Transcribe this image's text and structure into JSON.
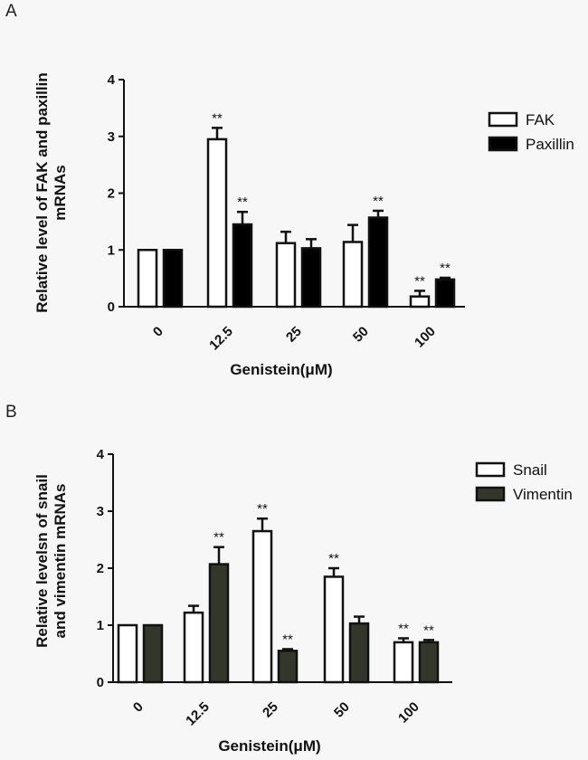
{
  "panels": {
    "a": {
      "letter": "A"
    },
    "b": {
      "letter": "B"
    }
  },
  "chart_data": [
    {
      "type": "bar",
      "title": "",
      "categories": [
        "0",
        "12.5",
        "25",
        "50",
        "100"
      ],
      "xlabel": "Genistein(μM)",
      "ylabel": [
        "Relative level of FAK and paxillin",
        "mRNAs"
      ],
      "ylim": [
        0,
        4
      ],
      "yticks": [
        "0",
        "1",
        "2",
        "3",
        "4"
      ],
      "series": [
        {
          "name": "FAK",
          "color": "#ffffff",
          "values": [
            1.0,
            2.95,
            1.12,
            1.14,
            0.18
          ],
          "errors": [
            0.0,
            0.2,
            0.2,
            0.3,
            0.1
          ],
          "significance": [
            "",
            "**",
            "",
            "",
            "**"
          ]
        },
        {
          "name": "Paxillin",
          "color": "#000000",
          "values": [
            1.0,
            1.45,
            1.03,
            1.57,
            0.48
          ],
          "errors": [
            0.0,
            0.22,
            0.16,
            0.12,
            0.03
          ],
          "significance": [
            "",
            "**",
            "",
            "**",
            "**"
          ]
        }
      ],
      "legend": "top-right"
    },
    {
      "type": "bar",
      "title": "",
      "categories": [
        "0",
        "12.5",
        "25",
        "50",
        "100"
      ],
      "xlabel": "Genistein(μM)",
      "ylabel": [
        "Relative levelsn of snail",
        "and vimentin mRNAs"
      ],
      "ylim": [
        0,
        4
      ],
      "yticks": [
        "0",
        "1",
        "2",
        "3",
        "4"
      ],
      "series": [
        {
          "name": "Snail",
          "color": "#ffffff",
          "values": [
            1.0,
            1.22,
            2.65,
            1.85,
            0.7
          ],
          "errors": [
            0.0,
            0.12,
            0.22,
            0.15,
            0.07
          ],
          "significance": [
            "",
            "",
            "**",
            "**",
            "**"
          ]
        },
        {
          "name": "Vimentin",
          "color": "#33362a",
          "values": [
            1.0,
            2.07,
            0.55,
            1.03,
            0.7
          ],
          "errors": [
            0.0,
            0.3,
            0.03,
            0.12,
            0.04
          ],
          "significance": [
            "",
            "**",
            "**",
            "",
            "**"
          ]
        }
      ],
      "legend": "top-right"
    }
  ]
}
